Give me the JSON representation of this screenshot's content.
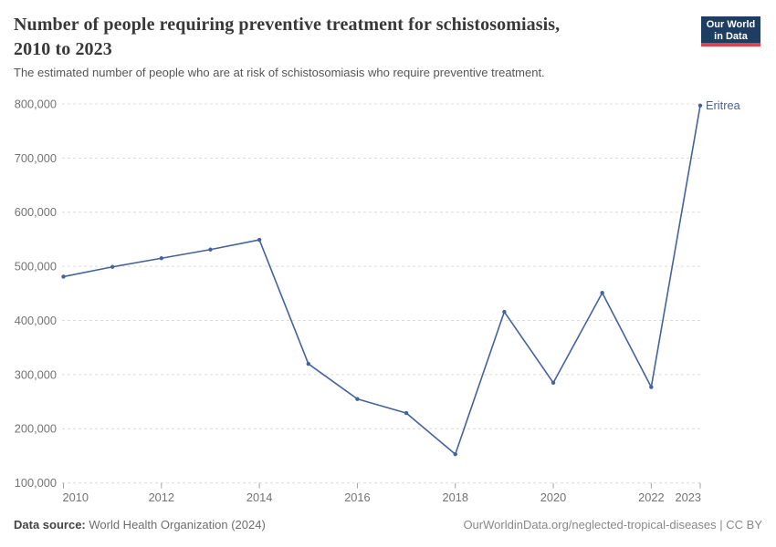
{
  "header": {
    "title_line1": "Number of people requiring preventive treatment for schistosomiasis,",
    "title_line2": "2010 to 2023",
    "subtitle": "The estimated number of people who are at risk of schistosomiasis who require preventive treatment.",
    "logo": {
      "line1": "Our World",
      "line2": "in Data",
      "bg_color": "#1d3d63",
      "accent_color": "#e0434a"
    }
  },
  "chart_data": {
    "type": "line",
    "title": "Number of people requiring preventive treatment for schistosomiasis, 2010 to 2023",
    "x": [
      2010,
      2011,
      2012,
      2013,
      2014,
      2015,
      2016,
      2017,
      2018,
      2019,
      2020,
      2021,
      2022,
      2023
    ],
    "series": [
      {
        "name": "Eritrea",
        "color": "#44639c",
        "values": [
          481000,
          499000,
          515000,
          531000,
          549000,
          320000,
          255000,
          229000,
          153000,
          416000,
          285000,
          451000,
          277000,
          797000
        ]
      }
    ],
    "xlabel": "",
    "ylabel": "",
    "ylim": [
      100000,
      800000
    ],
    "yticks": [
      100000,
      200000,
      300000,
      400000,
      500000,
      600000,
      700000,
      800000
    ],
    "xticks": [
      2010,
      2012,
      2014,
      2016,
      2018,
      2020,
      2022,
      2023
    ],
    "grid": "horizontal-dashed",
    "grid_color": "#dcdcdc",
    "tick_color": "#a3a3a3",
    "axis_label_color": "#737373",
    "legend_position": "line-end-label"
  },
  "footer": {
    "source_label": "Data source:",
    "source_value": " World Health Organization (2024)",
    "credit": "OurWorldinData.org/neglected-tropical-diseases | CC BY"
  }
}
